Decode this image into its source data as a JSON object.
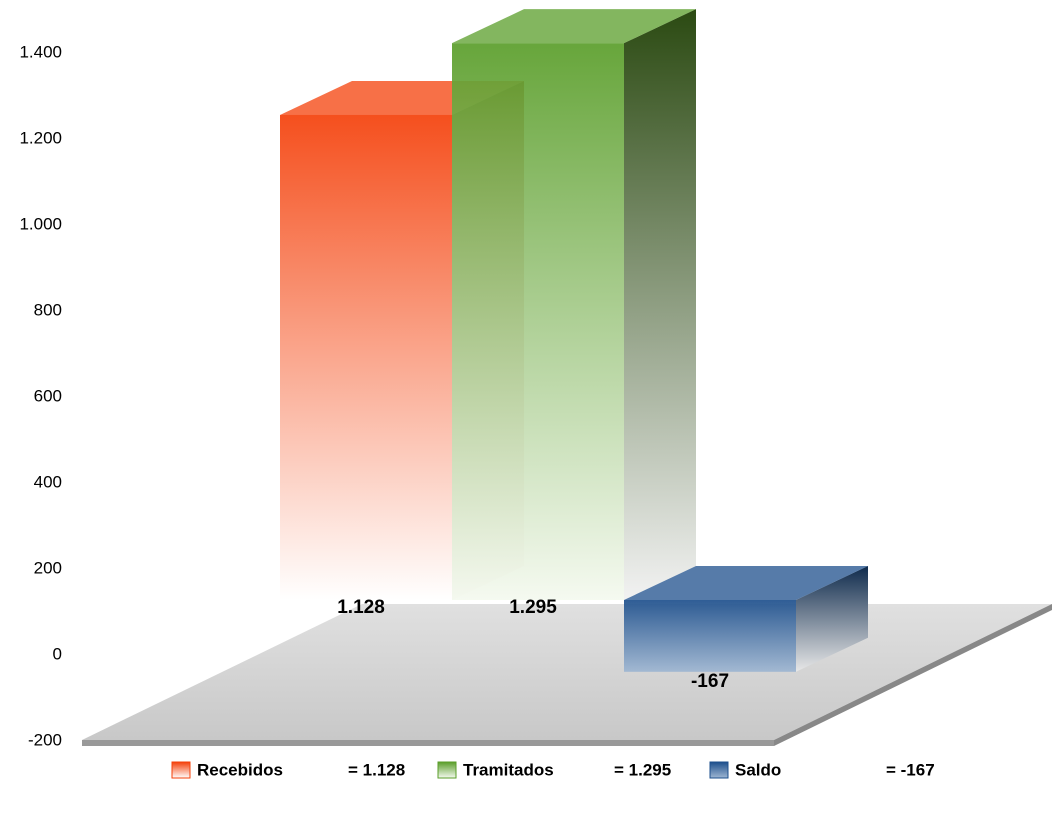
{
  "chart_data": {
    "type": "bar3d",
    "series": [
      {
        "name": "Recebidos",
        "color": "#f4400a",
        "values": [
          1128
        ],
        "value_labels": [
          "1.128"
        ],
        "legend_label": "= 1.128"
      },
      {
        "name": "Tramitados",
        "color": "#5a9e2a",
        "values": [
          1295
        ],
        "value_labels": [
          "1.295"
        ],
        "legend_label": "= 1.295"
      },
      {
        "name": "Saldo",
        "color": "#1d4f8c",
        "values": [
          -167
        ],
        "value_labels": [
          "-167"
        ],
        "legend_label": "= -167"
      }
    ],
    "ylim": [
      -200,
      1400
    ],
    "yticks": [
      -200,
      0,
      200,
      400,
      600,
      800,
      {
        "value": 1000,
        "label": "1.000"
      },
      {
        "value": 1200,
        "label": "1.200"
      },
      {
        "value": 1400,
        "label": "1.400"
      }
    ],
    "legend": "bottom"
  }
}
